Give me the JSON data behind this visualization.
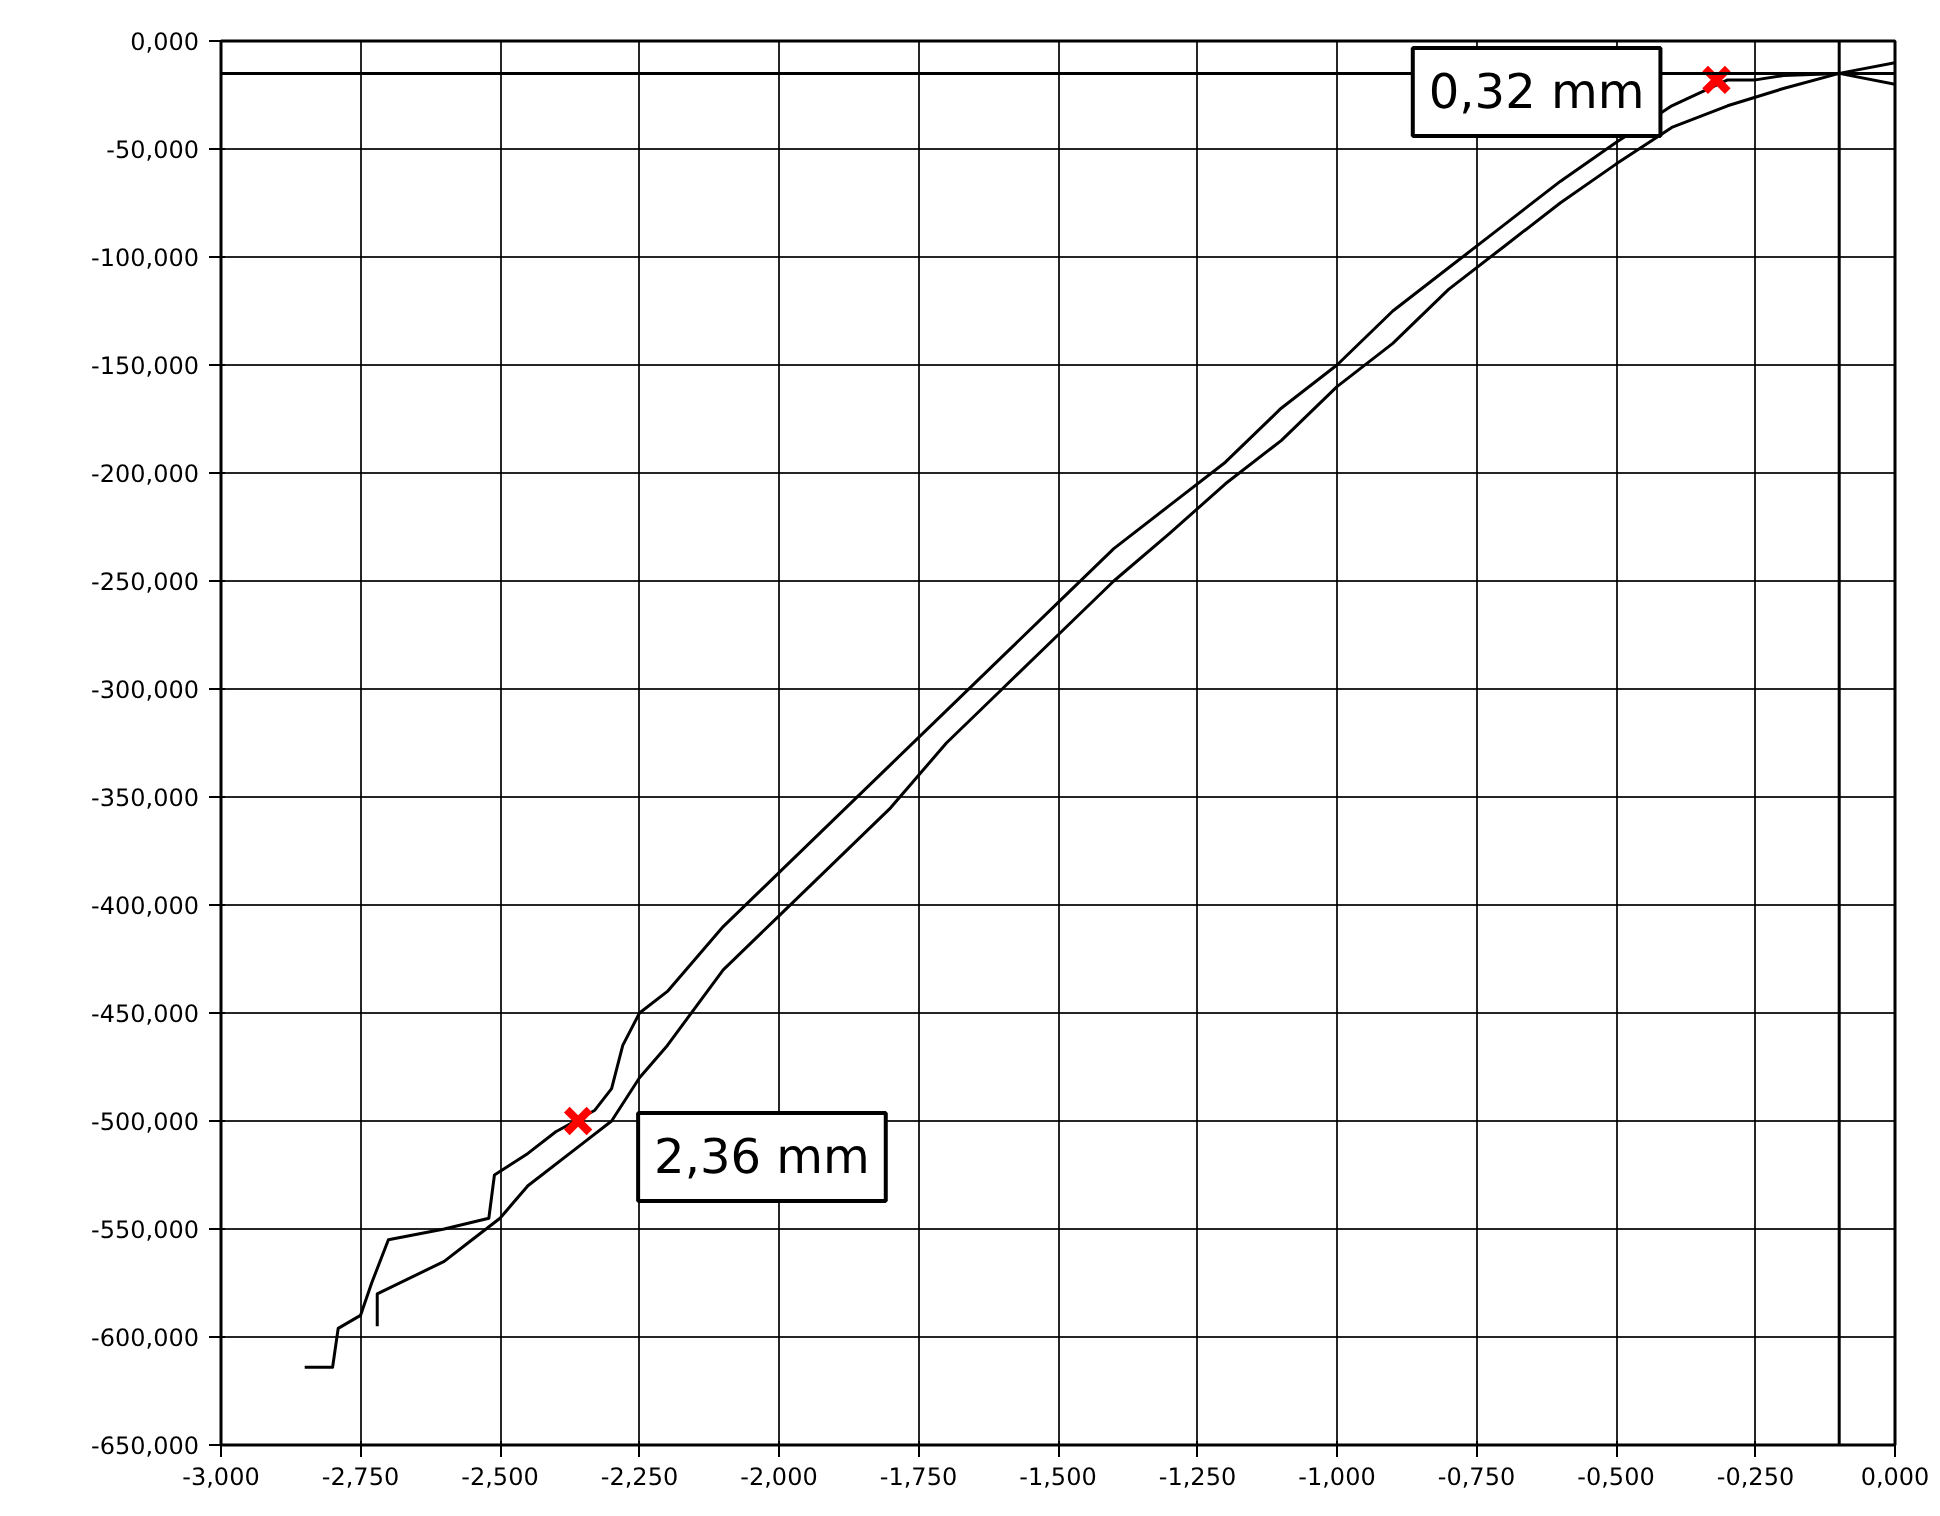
{
  "chart_data": {
    "type": "line",
    "xlim": [
      -3,
      0
    ],
    "ylim": [
      -650,
      0
    ],
    "xticks": [
      {
        "value": -3,
        "label": "-3,000"
      },
      {
        "value": -2.75,
        "label": "-2,750"
      },
      {
        "value": -2.5,
        "label": "-2,500"
      },
      {
        "value": -2.25,
        "label": "-2,250"
      },
      {
        "value": -2,
        "label": "-2,000"
      },
      {
        "value": -1.75,
        "label": "-1,750"
      },
      {
        "value": -1.5,
        "label": "-1,500"
      },
      {
        "value": -1.25,
        "label": "-1,250"
      },
      {
        "value": -1,
        "label": "-1,000"
      },
      {
        "value": -0.75,
        "label": "-0,750"
      },
      {
        "value": -0.5,
        "label": "-0,500"
      },
      {
        "value": -0.25,
        "label": "-0,250"
      },
      {
        "value": 0,
        "label": "0,000"
      }
    ],
    "yticks": [
      {
        "value": 0,
        "label": "0,000"
      },
      {
        "value": -50,
        "label": "-50,000"
      },
      {
        "value": -100,
        "label": "-100,000"
      },
      {
        "value": -150,
        "label": "-150,000"
      },
      {
        "value": -200,
        "label": "-200,000"
      },
      {
        "value": -250,
        "label": "-250,000"
      },
      {
        "value": -300,
        "label": "-300,000"
      },
      {
        "value": -350,
        "label": "-350,000"
      },
      {
        "value": -400,
        "label": "-400,000"
      },
      {
        "value": -450,
        "label": "-450,000"
      },
      {
        "value": -500,
        "label": "-500,000"
      },
      {
        "value": -550,
        "label": "-550,000"
      },
      {
        "value": -600,
        "label": "-600,000"
      },
      {
        "value": -650,
        "label": "-650,000"
      }
    ],
    "grid": true,
    "marker": "none",
    "line_style": "solid",
    "series": [
      {
        "color": "#000000",
        "x": [
          -2.85,
          -2.8,
          -2.79,
          -2.75,
          -2.73,
          -2.7,
          -2.6,
          -2.52,
          -2.51,
          -2.45,
          -2.4,
          -2.33,
          -2.3,
          -2.28,
          -2.25,
          -2.2,
          -2.15,
          -2.1,
          -2.0,
          -1.9,
          -1.8,
          -1.7,
          -1.6,
          -1.5,
          -1.4,
          -1.3,
          -1.2,
          -1.1,
          -1.0,
          -0.9,
          -0.8,
          -0.7,
          -0.6,
          -0.5,
          -0.4,
          -0.3,
          -0.25,
          -0.2,
          -0.1,
          0
        ],
        "values": [
          -614,
          -614,
          -596,
          -590,
          -575,
          -555,
          -550,
          -545,
          -525,
          -515,
          -505,
          -495,
          -485,
          -465,
          -450,
          -440,
          -425,
          -410,
          -385,
          -360,
          -335,
          -310,
          -285,
          -260,
          -235,
          -215,
          -195,
          -170,
          -150,
          -125,
          -105,
          -85,
          -65,
          -47,
          -30,
          -18,
          -18,
          -16,
          -15,
          -10
        ]
      },
      {
        "color": "#000000",
        "x": [
          -2.72,
          -2.72,
          -2.6,
          -2.55,
          -2.5,
          -2.45,
          -2.35,
          -2.3,
          -2.25,
          -2.2,
          -2.1,
          -2.0,
          -1.9,
          -1.8,
          -1.7,
          -1.6,
          -1.5,
          -1.4,
          -1.3,
          -1.2,
          -1.1,
          -1.0,
          -0.9,
          -0.8,
          -0.7,
          -0.6,
          -0.5,
          -0.4,
          -0.3,
          -0.2,
          -0.1,
          0
        ],
        "values": [
          -595,
          -580,
          -565,
          -555,
          -545,
          -530,
          -510,
          -500,
          -480,
          -465,
          -430,
          -405,
          -380,
          -355,
          -325,
          -300,
          -275,
          -250,
          -228,
          -205,
          -185,
          -160,
          -140,
          -115,
          -95,
          -75,
          -57,
          -40,
          -30,
          -22,
          -15,
          -20
        ]
      }
    ],
    "ref_lines": [
      {
        "axis": "y",
        "value": -15,
        "color": "#000000"
      },
      {
        "axis": "x",
        "value": -0.1,
        "color": "#000000"
      }
    ],
    "annotations": [
      {
        "text": "0,32 mm",
        "x": -0.32,
        "y": -18
      },
      {
        "text": "2,36 mm",
        "x": -2.36,
        "y": -500
      }
    ]
  }
}
